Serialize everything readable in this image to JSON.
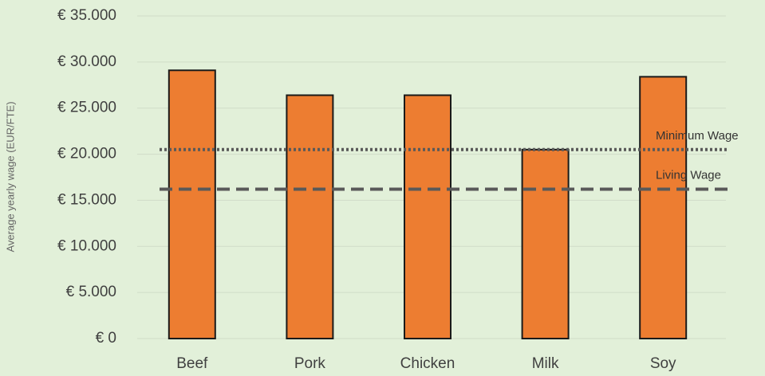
{
  "chart_data": {
    "type": "bar",
    "categories": [
      "Beef",
      "Pork",
      "Chicken",
      "Milk",
      "Soy"
    ],
    "values": [
      29100,
      26400,
      26400,
      20500,
      28400
    ],
    "ylabel": "Average yearly  wage (EUR/FTE)",
    "ylim": [
      0,
      35000
    ],
    "y_ticks": [
      "€ 0",
      "€ 5.000",
      "€ 10.000",
      "€ 15.000",
      "€ 20.000",
      "€ 25.000",
      "€ 30.000",
      "€ 35.000"
    ],
    "grid": true,
    "bar_color": "#ed7d31",
    "reference_lines": [
      {
        "name": "Minimum Wage",
        "value": 20500,
        "style": "dotted"
      },
      {
        "name": "Living Wage",
        "value": 16200,
        "style": "dashed"
      }
    ]
  }
}
